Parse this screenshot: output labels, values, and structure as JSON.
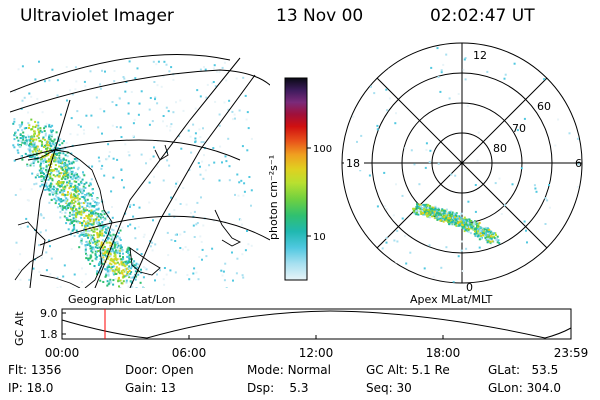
{
  "header": {
    "title": "Ultraviolet Imager",
    "date": "13 Nov 00",
    "time": "02:02:47 UT"
  },
  "colorbar": {
    "unit_label": "photon cm⁻²s⁻¹",
    "ticks": [
      "100",
      "10"
    ],
    "colors": [
      "#0a0a14",
      "#3c1b5c",
      "#7a2a7a",
      "#a0103a",
      "#d01010",
      "#e8501a",
      "#f0a020",
      "#e0d020",
      "#b8e030",
      "#70d040",
      "#30c070",
      "#20b8b0",
      "#50c8e0",
      "#a8e0f0",
      "#e8f4f8"
    ]
  },
  "left_panel": {
    "caption": "Geographic Lat/Lon"
  },
  "right_panel": {
    "caption": "Apex MLat/MLT",
    "mlt_labels": {
      "top": "12",
      "left": "18",
      "right": "6",
      "bottom": "0"
    },
    "lat_labels": [
      "60",
      "70",
      "80"
    ]
  },
  "altitude_plot": {
    "y_title": "GC Alt",
    "y_ticks": [
      "9.0",
      "1.8"
    ],
    "x_ticks": [
      "00:00",
      "06:00",
      "12:00",
      "18:00",
      "23:59"
    ],
    "current_marker_time": "02:02"
  },
  "info": {
    "flt": {
      "label": "Flt:",
      "value": "1356"
    },
    "ip": {
      "label": "IP:",
      "value": "18.0"
    },
    "door": {
      "label": "Door:",
      "value": "Open"
    },
    "gain": {
      "label": "Gain:",
      "value": "13"
    },
    "mode": {
      "label": "Mode:",
      "value": "Normal"
    },
    "dsp": {
      "label": "Dsp:",
      "value": "5.3"
    },
    "gcalt": {
      "label": "GC Alt:",
      "value": "5.1 Re"
    },
    "seq": {
      "label": "Seq:",
      "value": "30"
    },
    "glat": {
      "label": "GLat:",
      "value": "53.5"
    },
    "glon": {
      "label": "GLon:",
      "value": "304.0"
    }
  }
}
